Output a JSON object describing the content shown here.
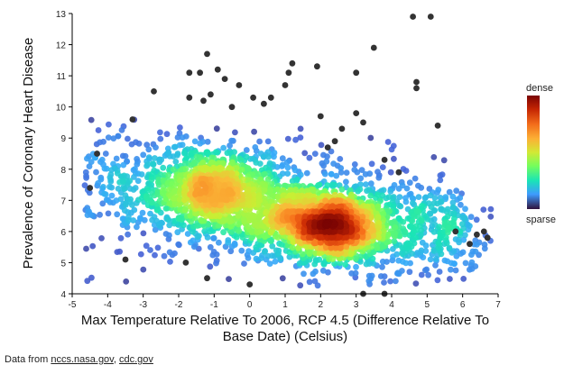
{
  "chart_data": {
    "type": "scatter",
    "title": "",
    "xlabel_lines": [
      "Max Temperature Relative To 2006, RCP 4.5 (Difference Relative To",
      "Base Date) (Celsius)"
    ],
    "ylabel": "Prevalence of Coronary Heart Disease",
    "xlim": [
      -5,
      7
    ],
    "ylim": [
      4,
      13
    ],
    "x_ticks": [
      "-5",
      "-4",
      "-3",
      "-2",
      "-1",
      "0",
      "1",
      "2",
      "3",
      "4",
      "5",
      "6",
      "7"
    ],
    "y_ticks": [
      "4",
      "5",
      "6",
      "7",
      "8",
      "9",
      "10",
      "11",
      "12",
      "13"
    ],
    "grid": false,
    "color_encoding": "point density",
    "legend": {
      "position": "right",
      "high_label": "dense",
      "low_label": "sparse",
      "colormap": "turbo"
    },
    "density_clusters": [
      {
        "x": 2.2,
        "y": 6.2,
        "n": 1500,
        "sx": 0.85,
        "sy": 0.55
      },
      {
        "x": -1.0,
        "y": 7.3,
        "n": 1000,
        "sx": 0.85,
        "sy": 0.7
      },
      {
        "x": 0.8,
        "y": 6.7,
        "n": 600,
        "sx": 1.7,
        "sy": 0.9
      },
      {
        "x": 4.3,
        "y": 6.2,
        "n": 350,
        "sx": 1.0,
        "sy": 0.9
      },
      {
        "x": -3.3,
        "y": 7.3,
        "n": 260,
        "sx": 0.9,
        "sy": 1.1
      },
      {
        "x": 5.8,
        "y": 6.0,
        "n": 90,
        "sx": 0.55,
        "sy": 0.6
      }
    ],
    "outliers": [
      [
        -4.3,
        8.5
      ],
      [
        -4.5,
        7.4
      ],
      [
        -3.5,
        5.1
      ],
      [
        -3.3,
        9.6
      ],
      [
        -2.7,
        10.5
      ],
      [
        -1.8,
        5.0
      ],
      [
        -1.7,
        11.1
      ],
      [
        -1.7,
        10.3
      ],
      [
        -1.4,
        11.1
      ],
      [
        -1.3,
        10.2
      ],
      [
        -1.2,
        11.7
      ],
      [
        -1.2,
        4.5
      ],
      [
        -1.1,
        10.4
      ],
      [
        -0.9,
        11.2
      ],
      [
        -0.7,
        10.9
      ],
      [
        -0.5,
        10.0
      ],
      [
        -0.3,
        10.7
      ],
      [
        0.0,
        4.3
      ],
      [
        0.1,
        10.3
      ],
      [
        0.4,
        10.1
      ],
      [
        0.6,
        10.3
      ],
      [
        1.0,
        10.7
      ],
      [
        1.1,
        11.1
      ],
      [
        1.2,
        11.4
      ],
      [
        1.9,
        11.3
      ],
      [
        2.0,
        9.7
      ],
      [
        2.2,
        8.7
      ],
      [
        2.4,
        8.9
      ],
      [
        2.6,
        9.3
      ],
      [
        3.0,
        11.1
      ],
      [
        3.0,
        9.8
      ],
      [
        3.2,
        9.5
      ],
      [
        3.5,
        11.9
      ],
      [
        3.8,
        8.3
      ],
      [
        4.2,
        7.9
      ],
      [
        4.6,
        12.9
      ],
      [
        4.7,
        10.8
      ],
      [
        4.7,
        10.6
      ],
      [
        5.1,
        12.9
      ],
      [
        5.3,
        9.4
      ],
      [
        5.8,
        6.0
      ],
      [
        6.2,
        5.6
      ],
      [
        6.4,
        5.9
      ],
      [
        6.6,
        6.0
      ],
      [
        6.7,
        5.8
      ],
      [
        3.8,
        4.0
      ],
      [
        3.2,
        4.0
      ]
    ],
    "outlier_color": "#333333"
  },
  "source": {
    "prefix": "Data from ",
    "link1": "nccs.nasa.gov",
    "separator": ", ",
    "link2": "cdc.gov"
  }
}
